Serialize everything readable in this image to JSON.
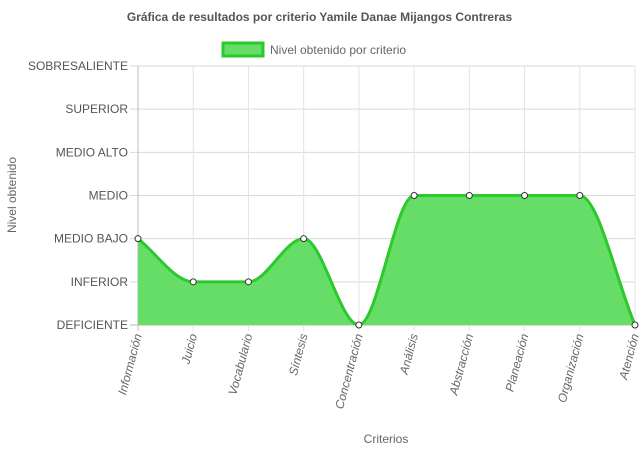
{
  "chart_data": {
    "type": "area",
    "title": "Gráfica de resultados por criterio Yamile Danae Mijangos Contreras",
    "xlabel": "Criterios",
    "ylabel": "Nivel obtenido",
    "y_levels": [
      "DEFICIENTE",
      "INFERIOR",
      "MEDIO BAJO",
      "MEDIO",
      "MEDIO ALTO",
      "SUPERIOR",
      "SOBRESALIENTE"
    ],
    "ylim": [
      0,
      6
    ],
    "categories": [
      "Información",
      "Juicio",
      "Vocabulario",
      "Síntesis",
      "Concentración",
      "Análisis",
      "Abstracción",
      "Planeación",
      "Organización",
      "Atención"
    ],
    "series": [
      {
        "name": "Nivel obtenido por criterio",
        "values": [
          2,
          1,
          1,
          2,
          0,
          3,
          3,
          3,
          3,
          0
        ],
        "color": "#2bc92b",
        "fill": "#66dd66"
      }
    ],
    "grid": true,
    "legend_position": "top"
  }
}
